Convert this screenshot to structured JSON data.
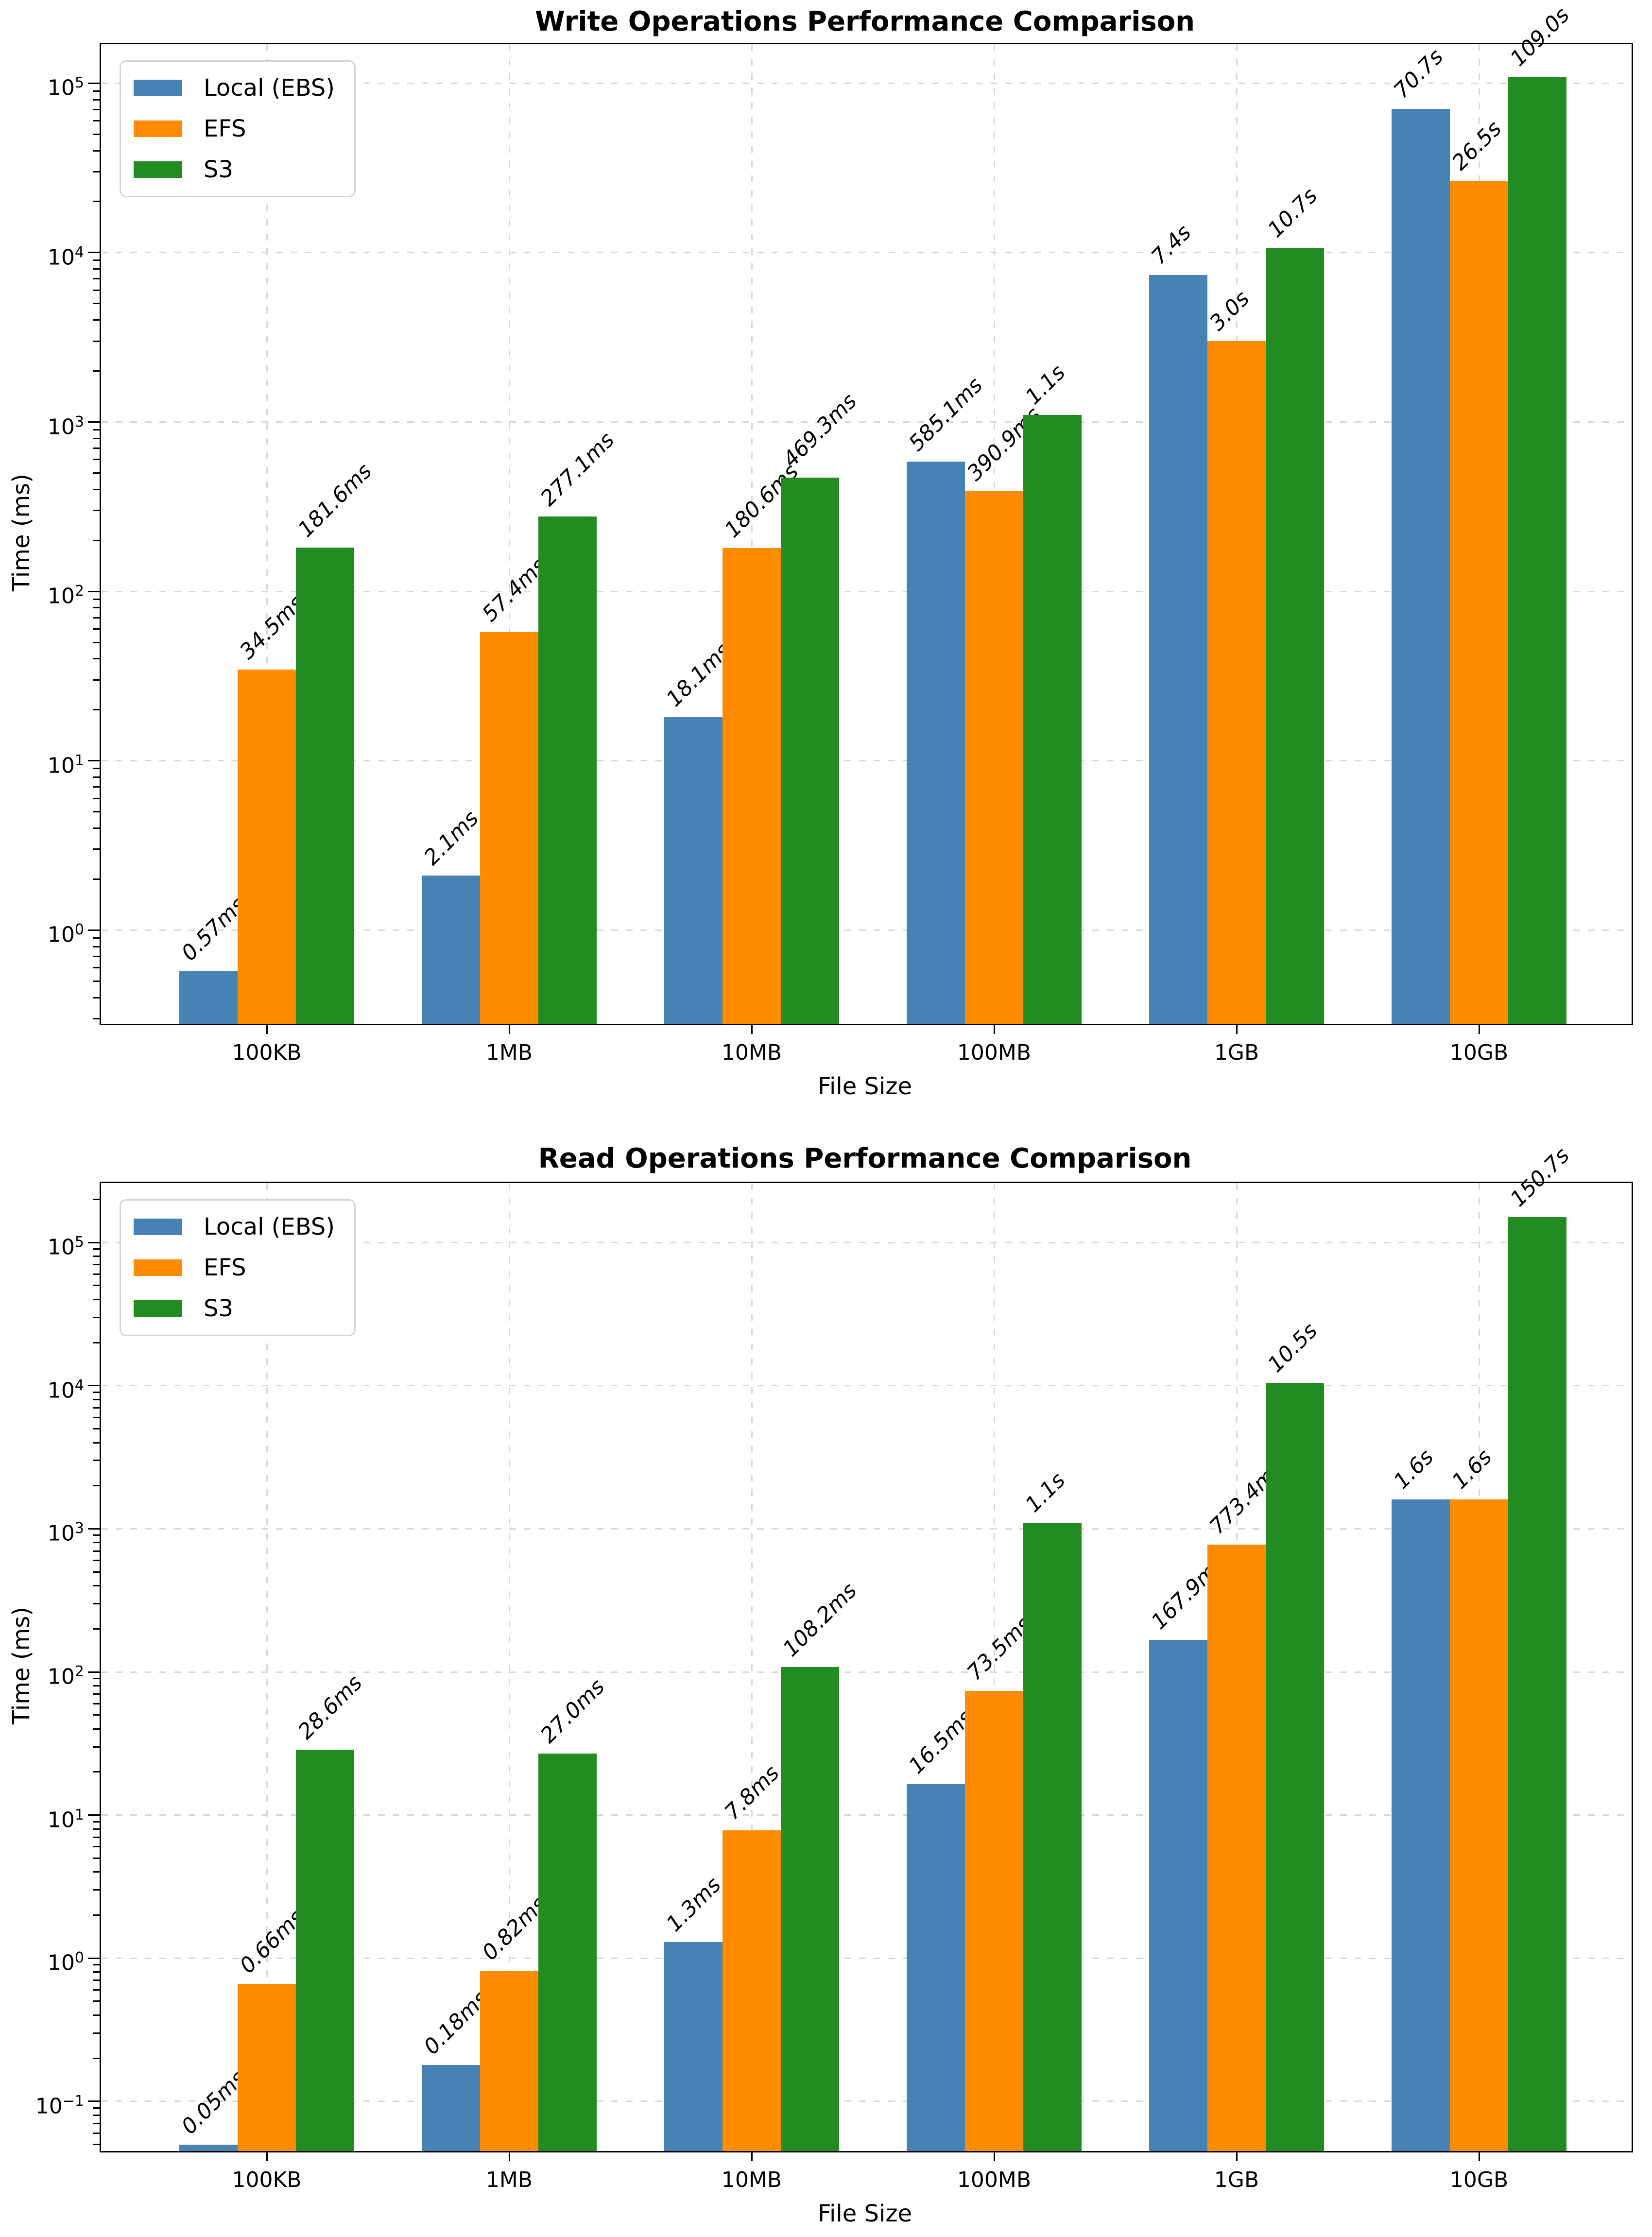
{
  "chart_data": [
    {
      "type": "bar",
      "title": "Write Operations Performance Comparison",
      "xlabel": "File Size",
      "ylabel": "Time (ms)",
      "categories": [
        "100KB",
        "1MB",
        "10MB",
        "100MB",
        "1GB",
        "10GB"
      ],
      "series": [
        {
          "name": "Local (EBS)",
          "color": "#4682B4",
          "values_ms": [
            0.57,
            2.1,
            18.1,
            585.1,
            7400,
            70700
          ],
          "labels": [
            "0.57ms",
            "2.1ms",
            "18.1ms",
            "585.1ms",
            "7.4s",
            "70.7s"
          ]
        },
        {
          "name": "EFS",
          "color": "#FF8C00",
          "values_ms": [
            34.5,
            57.4,
            180.6,
            390.9,
            3000,
            26500
          ],
          "labels": [
            "34.5ms",
            "57.4ms",
            "180.6ms",
            "390.9ms",
            "3.0s",
            "26.5s"
          ]
        },
        {
          "name": "S3",
          "color": "#228B22",
          "values_ms": [
            181.6,
            277.1,
            469.3,
            1100,
            10700,
            109000
          ],
          "labels": [
            "181.6ms",
            "277.1ms",
            "469.3ms",
            "1.1s",
            "10.7s",
            "109.0s"
          ]
        }
      ],
      "y_scale": "log",
      "ylim": [
        0.28,
        170000
      ],
      "y_tick_exponents": [
        0,
        1,
        2,
        3,
        4,
        5
      ],
      "legend_position": "upper left",
      "grid": "dashed"
    },
    {
      "type": "bar",
      "title": "Read Operations Performance Comparison",
      "xlabel": "File Size",
      "ylabel": "Time (ms)",
      "categories": [
        "100KB",
        "1MB",
        "10MB",
        "100MB",
        "1GB",
        "10GB"
      ],
      "series": [
        {
          "name": "Local (EBS)",
          "color": "#4682B4",
          "values_ms": [
            0.05,
            0.18,
            1.3,
            16.5,
            167.9,
            1600
          ],
          "labels": [
            "0.05ms",
            "0.18ms",
            "1.3ms",
            "16.5ms",
            "167.9ms",
            "1.6s"
          ]
        },
        {
          "name": "EFS",
          "color": "#FF8C00",
          "values_ms": [
            0.66,
            0.82,
            7.8,
            73.5,
            773.4,
            1600
          ],
          "labels": [
            "0.66ms",
            "0.82ms",
            "7.8ms",
            "73.5ms",
            "773.4ms",
            "1.6s"
          ]
        },
        {
          "name": "S3",
          "color": "#228B22",
          "values_ms": [
            28.6,
            27.0,
            108.2,
            1100,
            10500,
            150700
          ],
          "labels": [
            "28.6ms",
            "27.0ms",
            "108.2ms",
            "1.1s",
            "10.5s",
            "150.7s"
          ]
        }
      ],
      "y_scale": "log",
      "ylim": [
        0.045,
        260000
      ],
      "y_tick_exponents": [
        -1,
        0,
        1,
        2,
        3,
        4,
        5
      ],
      "legend_position": "upper left",
      "grid": "dashed"
    }
  ]
}
